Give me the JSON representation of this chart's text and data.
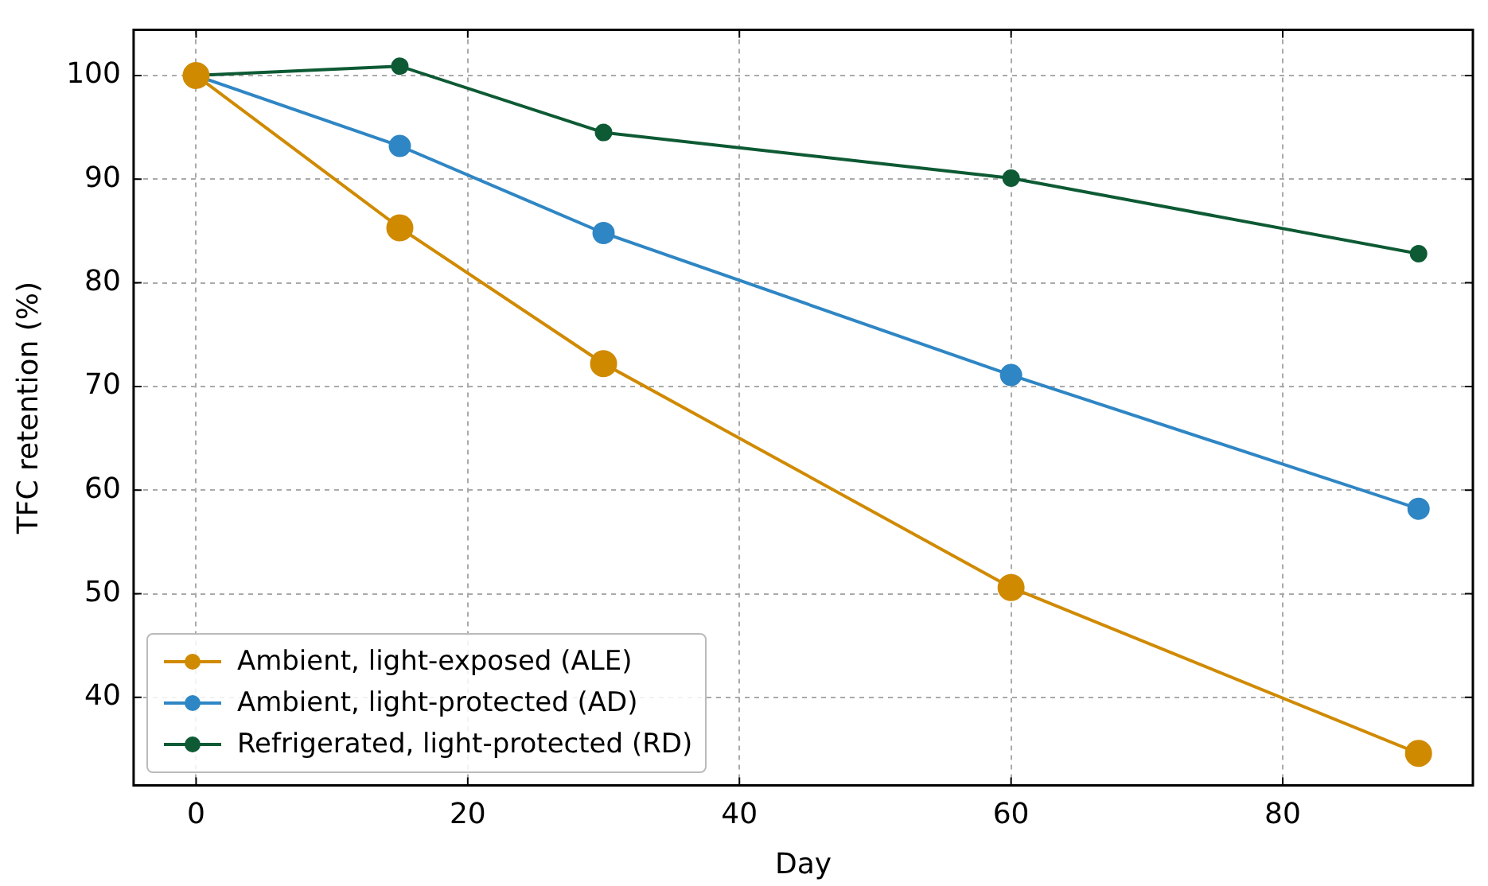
{
  "chart_data": {
    "type": "line",
    "xlabel": "Day",
    "ylabel": "TFC retention (%)",
    "x": [
      0,
      15,
      30,
      60,
      90
    ],
    "series": [
      {
        "name": "Ambient, light-exposed (ALE)",
        "color": "#d08a00",
        "values": [
          100,
          85.3,
          72.2,
          50.6,
          34.6
        ]
      },
      {
        "name": "Ambient, light-protected (AD)",
        "color": "#2f86c4",
        "values": [
          100,
          93.2,
          84.8,
          71.1,
          58.2
        ]
      },
      {
        "name": "Refrigerated, light-protected (RD)",
        "color": "#0d5a34",
        "values": [
          100,
          100.9,
          94.5,
          90.1,
          82.8
        ]
      }
    ],
    "xlim": [
      -4.6,
      94
    ],
    "xticks": [
      0,
      20,
      40,
      60,
      80
    ],
    "ylim": [
      31.5,
      104.4
    ],
    "yticks": [
      40,
      50,
      60,
      70,
      80,
      90,
      100
    ],
    "grid": true,
    "legend": "bottom left",
    "marker": "circle",
    "line_style": "solid"
  }
}
